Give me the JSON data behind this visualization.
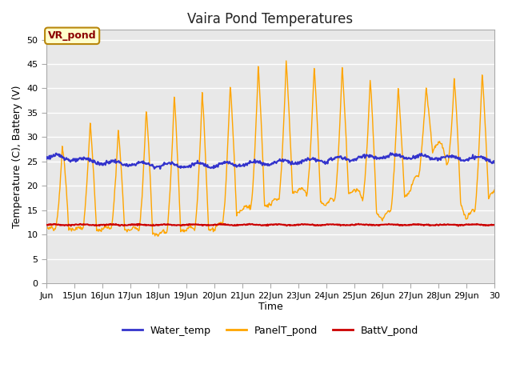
{
  "title": "Vaira Pond Temperatures",
  "xlabel": "Time",
  "ylabel": "Temperature (C), Battery (V)",
  "annotation": "VR_pond",
  "ylim": [
    0,
    52
  ],
  "yticks": [
    0,
    5,
    10,
    15,
    20,
    25,
    30,
    35,
    40,
    45,
    50
  ],
  "xtick_labels": [
    "Jun",
    "15Jun",
    "16Jun",
    "17Jun",
    "18Jun",
    "19Jun",
    "20Jun",
    "21Jun",
    "22Jun",
    "23Jun",
    "24Jun",
    "25Jun",
    "26Jun",
    "27Jun",
    "28Jun",
    "29Jun",
    "30"
  ],
  "water_color": "#3333cc",
  "panel_color": "#ffa500",
  "batt_color": "#cc0000",
  "fig_bg": "#ffffff",
  "plot_bg": "#e8e8e8",
  "grid_color": "#ffffff",
  "legend_labels": [
    "Water_temp",
    "PanelT_pond",
    "BattV_pond"
  ],
  "water_trend_x": [
    14,
    15,
    16,
    17,
    18,
    19,
    20,
    21,
    22,
    23,
    24,
    25,
    26,
    27,
    28,
    29,
    30
  ],
  "water_trend_y": [
    26.1,
    25.5,
    24.8,
    24.5,
    24.3,
    24.2,
    24.3,
    24.5,
    24.8,
    25.0,
    25.3,
    25.7,
    26.0,
    26.0,
    25.8,
    25.6,
    25.5
  ],
  "panel_peak_x": [
    14,
    15,
    16,
    17,
    18,
    19,
    20,
    21,
    22,
    23,
    24,
    25,
    26,
    27,
    28,
    29
  ],
  "panel_peak_y": [
    15,
    38,
    29,
    33,
    38,
    39,
    39,
    42,
    46,
    45,
    44,
    44,
    40,
    40,
    40,
    43
  ],
  "panel_min_x": [
    14,
    15,
    16,
    17,
    18,
    19,
    20,
    21,
    22,
    23,
    24,
    25,
    26,
    27,
    28,
    29,
    30
  ],
  "panel_min_y": [
    11,
    11,
    11,
    11,
    10,
    11,
    11,
    15,
    16,
    19,
    16,
    19,
    13,
    19,
    29,
    13,
    19
  ],
  "batt_level": 12.0,
  "title_fontsize": 12,
  "label_fontsize": 9,
  "tick_fontsize": 8
}
